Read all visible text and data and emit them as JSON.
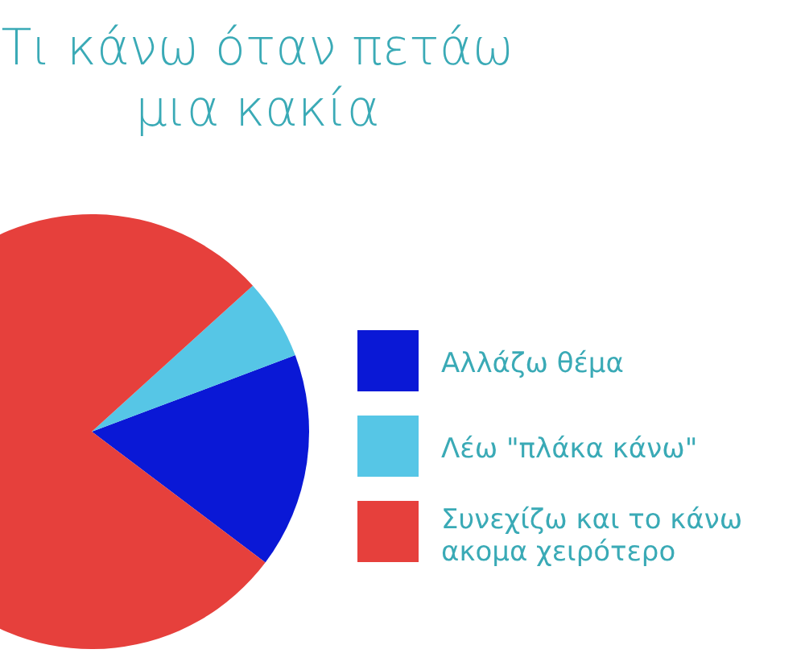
{
  "chart_data": {
    "type": "pie",
    "title": "Τι κάνω όταν πετάω\nμια κακία",
    "categories": [
      "Αλλάζω θέμα",
      "Λέω \"πλάκα κάνω\"",
      "Συνεχίζω και το κάνω\nακομα χειρότερο"
    ],
    "values": [
      16,
      6,
      78
    ],
    "colors": [
      "#0a18d6",
      "#56c6e6",
      "#e6403c"
    ],
    "legend": "right"
  }
}
